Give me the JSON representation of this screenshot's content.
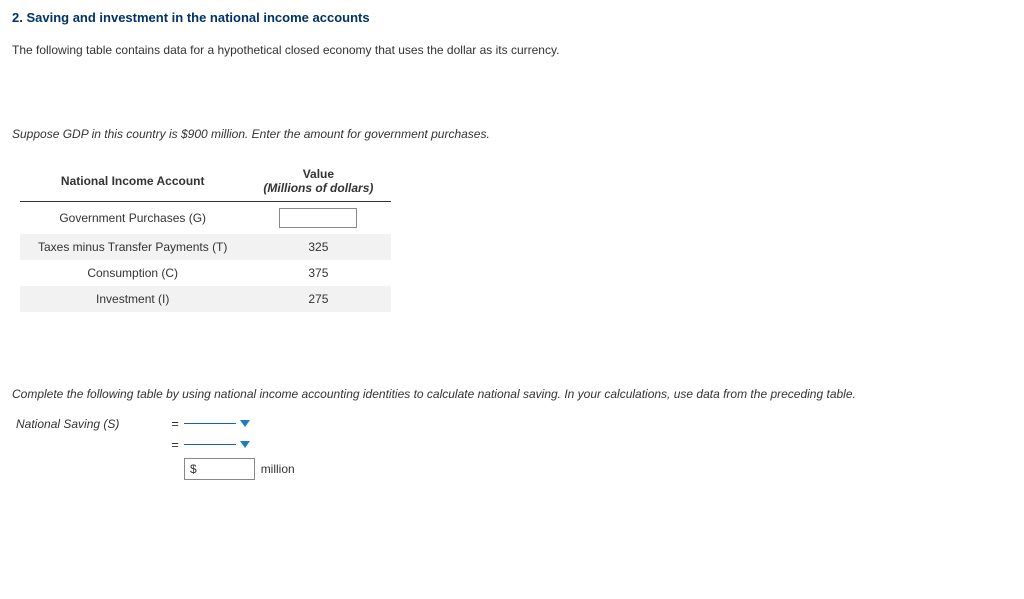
{
  "heading": "2. Saving and investment in the national income accounts",
  "intro": "The following table contains data for a hypothetical closed economy that uses the dollar as its currency.",
  "instruction1": "Suppose GDP in this country is $900 million. Enter the amount for government purchases.",
  "table": {
    "col1_header": "National Income Account",
    "col2_header_line1": "Value",
    "col2_header_line2": "(Millions of dollars)",
    "rows": [
      {
        "label": "Government Purchases (G)",
        "value": "",
        "input": true
      },
      {
        "label": "Taxes minus Transfer Payments (T)",
        "value": "325",
        "input": false
      },
      {
        "label": "Consumption (C)",
        "value": "375",
        "input": false
      },
      {
        "label": "Investment (I)",
        "value": "275",
        "input": false
      }
    ]
  },
  "instruction2": "Complete the following table by using national income accounting identities to calculate national saving. In your calculations, use data from the preceding table.",
  "ns": {
    "label": "National Saving (S)",
    "currency_symbol": "$",
    "unit": "million"
  },
  "colors": {
    "heading": "#003366",
    "dropdown_line": "#1a5fb4",
    "dropdown_arrow": "#1a7fc4",
    "row_alt_bg": "#f2f2f2",
    "border": "#888888"
  }
}
